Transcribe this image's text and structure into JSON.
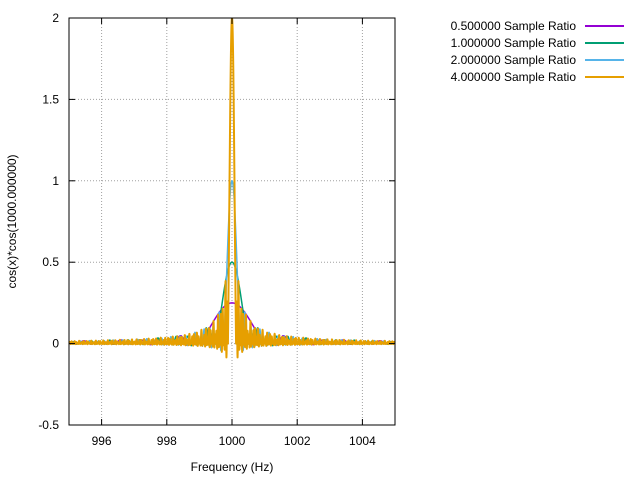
{
  "chart_data": {
    "type": "line",
    "title": "",
    "xlabel": "Frequency (Hz)",
    "ylabel": "cos(x)*cos(1000.000000)",
    "xlim": [
      995,
      1005
    ],
    "ylim": [
      -0.5,
      2
    ],
    "x_ticks": [
      996,
      998,
      1000,
      1002,
      1004
    ],
    "x_tick_labels": [
      "996",
      "998",
      "1000",
      "1002",
      "1004"
    ],
    "y_ticks": [
      -0.5,
      0,
      0.5,
      1,
      1.5,
      2
    ],
    "y_tick_labels": [
      "-0.5",
      "0",
      "0.5",
      "1",
      "1.5",
      "2"
    ],
    "grid": true,
    "legend_position": "outside-top-right",
    "series": [
      {
        "name": "0.500000 Sample Ratio",
        "color": "#9400d3",
        "peak": 0.25,
        "width": 1.0,
        "osc_freq": 1.0
      },
      {
        "name": "1.000000 Sample Ratio",
        "color": "#009e73",
        "peak": 0.5,
        "width": 0.5,
        "osc_freq": 2.0
      },
      {
        "name": "2.000000 Sample Ratio",
        "color": "#56b4e9",
        "peak": 1.0,
        "width": 0.25,
        "osc_freq": 4.0
      },
      {
        "name": "4.000000 Sample Ratio",
        "color": "#e69f00",
        "peak": 2.0,
        "width": 0.125,
        "osc_freq": 8.0
      }
    ]
  }
}
